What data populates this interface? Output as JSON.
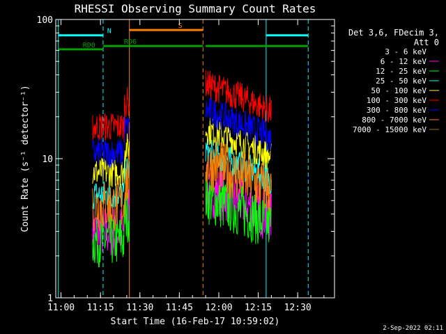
{
  "chart_data": {
    "type": "line",
    "title": "RHESSI Observing Summary Count Rates",
    "xlabel": "Start Time (16-Feb-17 10:59:02)",
    "ylabel": "Count Rate (s⁻¹ detector⁻¹)",
    "y_scale": "log",
    "ylim": [
      1,
      100
    ],
    "xlim_minutes": [
      -1,
      36
    ],
    "x_ticks": [
      {
        "minute": 1,
        "label": "11:00"
      },
      {
        "minute": 16,
        "label": "11:15"
      },
      {
        "minute": 31,
        "label": "11:30"
      },
      {
        "minute": 46,
        "label": "11:45"
      },
      {
        "minute": 61,
        "label": "12:00"
      },
      {
        "minute": 76,
        "label": "12:15"
      },
      {
        "minute": 91,
        "label": "12:30"
      }
    ],
    "y_ticks": [
      {
        "value": 1,
        "label": "1"
      },
      {
        "value": 10,
        "label": "10"
      },
      {
        "value": 100,
        "label": "100"
      }
    ],
    "legend_header": [
      "Det 3,6, FDecim 3,",
      "Att 0"
    ],
    "legend_position": "right",
    "series": [
      {
        "name": "3 - 6 keV",
        "color": "#000000",
        "level": 0
      },
      {
        "name": "6 - 12 keV",
        "color": "#ff00ff",
        "level": 3.0
      },
      {
        "name": "12 - 25 keV",
        "color": "#00ff00",
        "level": 2.6
      },
      {
        "name": "25 - 50 keV",
        "color": "#00ffff",
        "level": 5.5
      },
      {
        "name": "50 - 100 keV",
        "color": "#ffff00",
        "level": 8.0
      },
      {
        "name": "100 - 300 keV",
        "color": "#ff0000",
        "level": 17
      },
      {
        "name": "300 - 800 keV",
        "color": "#0000ff",
        "level": 11
      },
      {
        "name": "800 - 7000 keV",
        "color": "#ff8000",
        "level": 4.6
      },
      {
        "name": "7000 - 15000 keV",
        "color": "#a07000",
        "level": 0
      }
    ],
    "segments": [
      {
        "start": 13,
        "end": 27,
        "scale": 1.0
      },
      {
        "start": 56,
        "end": 81,
        "scale": 1.5
      }
    ],
    "flags": [
      {
        "label": "RD0",
        "color": "#00a000",
        "y": 61.0,
        "spans": [
          [
            0,
            17
          ]
        ]
      },
      {
        "label": "RD6",
        "color": "#00a000",
        "y": 64.5,
        "spans": [
          [
            17,
            55
          ],
          [
            56,
            61
          ],
          [
            61,
            95
          ]
        ]
      },
      {
        "label": "N",
        "color": "#00ffff",
        "y": 77.0,
        "spans": [
          [
            0,
            17
          ],
          [
            79,
            95
          ]
        ]
      },
      {
        "label": "S",
        "color": "#ff8000",
        "y": 84.0,
        "spans": [
          [
            27,
            55
          ]
        ]
      }
    ],
    "vlines": [
      {
        "minute": 0,
        "color": "#00ffff",
        "style": "solid"
      },
      {
        "minute": 17,
        "color": "#00ffff",
        "style": "dashed"
      },
      {
        "minute": 27,
        "color": "#ff8000",
        "style": "solid"
      },
      {
        "minute": 55,
        "color": "#ff8000",
        "style": "dashed"
      },
      {
        "minute": 79,
        "color": "#00ffff",
        "style": "solid"
      },
      {
        "minute": 95,
        "color": "#00ffff",
        "style": "dashed"
      }
    ]
  },
  "timestamp": "2-Sep-2022 02:11"
}
